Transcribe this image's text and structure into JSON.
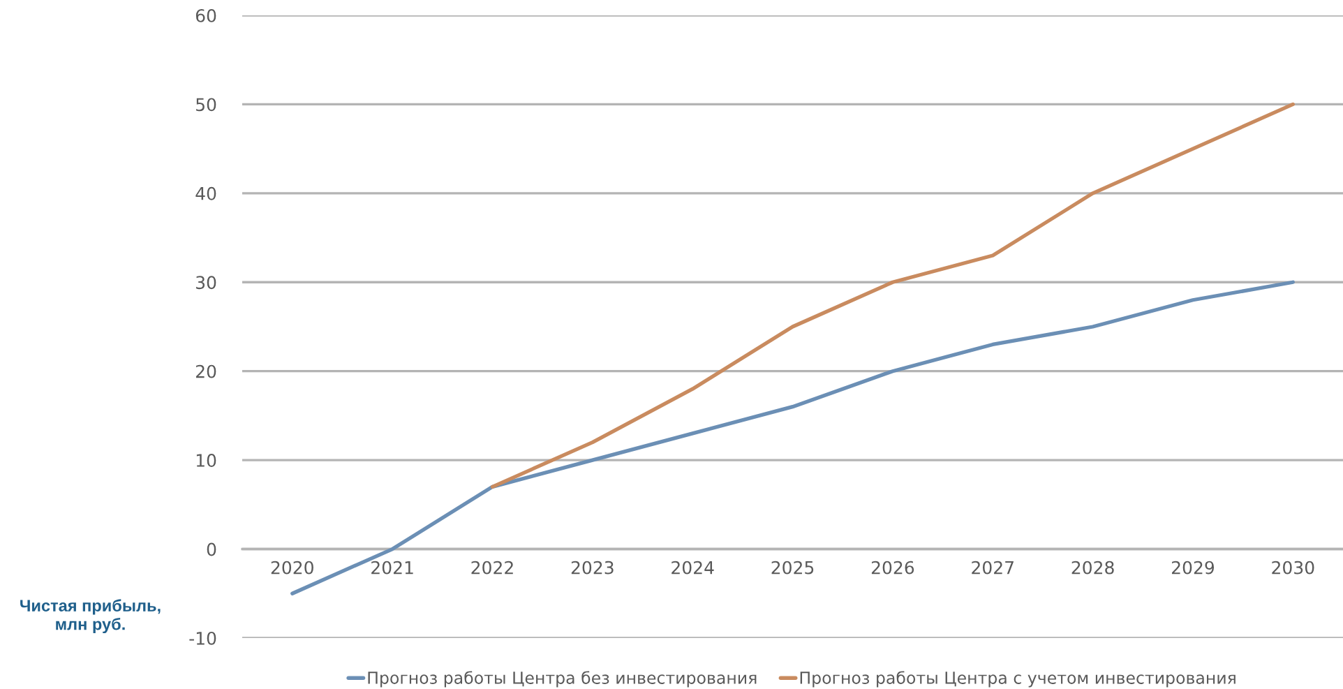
{
  "chart_data": {
    "type": "line",
    "ylabel": "Чистая прибыль, млн руб.",
    "categories": [
      "2020",
      "2021",
      "2022",
      "2023",
      "2024",
      "2025",
      "2026",
      "2027",
      "2028",
      "2029",
      "2030"
    ],
    "series": [
      {
        "name": "Прогноз работы Центра без инвестирования",
        "color": "#6b8fb5",
        "values": [
          -5,
          0,
          7,
          10,
          13,
          16,
          20,
          23,
          25,
          28,
          30
        ]
      },
      {
        "name": "Прогноз работы Центра с учетом инвестирования",
        "color": "#c98b5f",
        "values": [
          null,
          null,
          7,
          12,
          18,
          25,
          30,
          33,
          40,
          45,
          50
        ]
      }
    ],
    "ylim": [
      -10,
      60
    ],
    "yticks": [
      -10,
      0,
      10,
      20,
      30,
      40,
      50,
      60
    ],
    "grid": "y",
    "legend": "bottom",
    "marker": "none",
    "line_style": "solid"
  }
}
